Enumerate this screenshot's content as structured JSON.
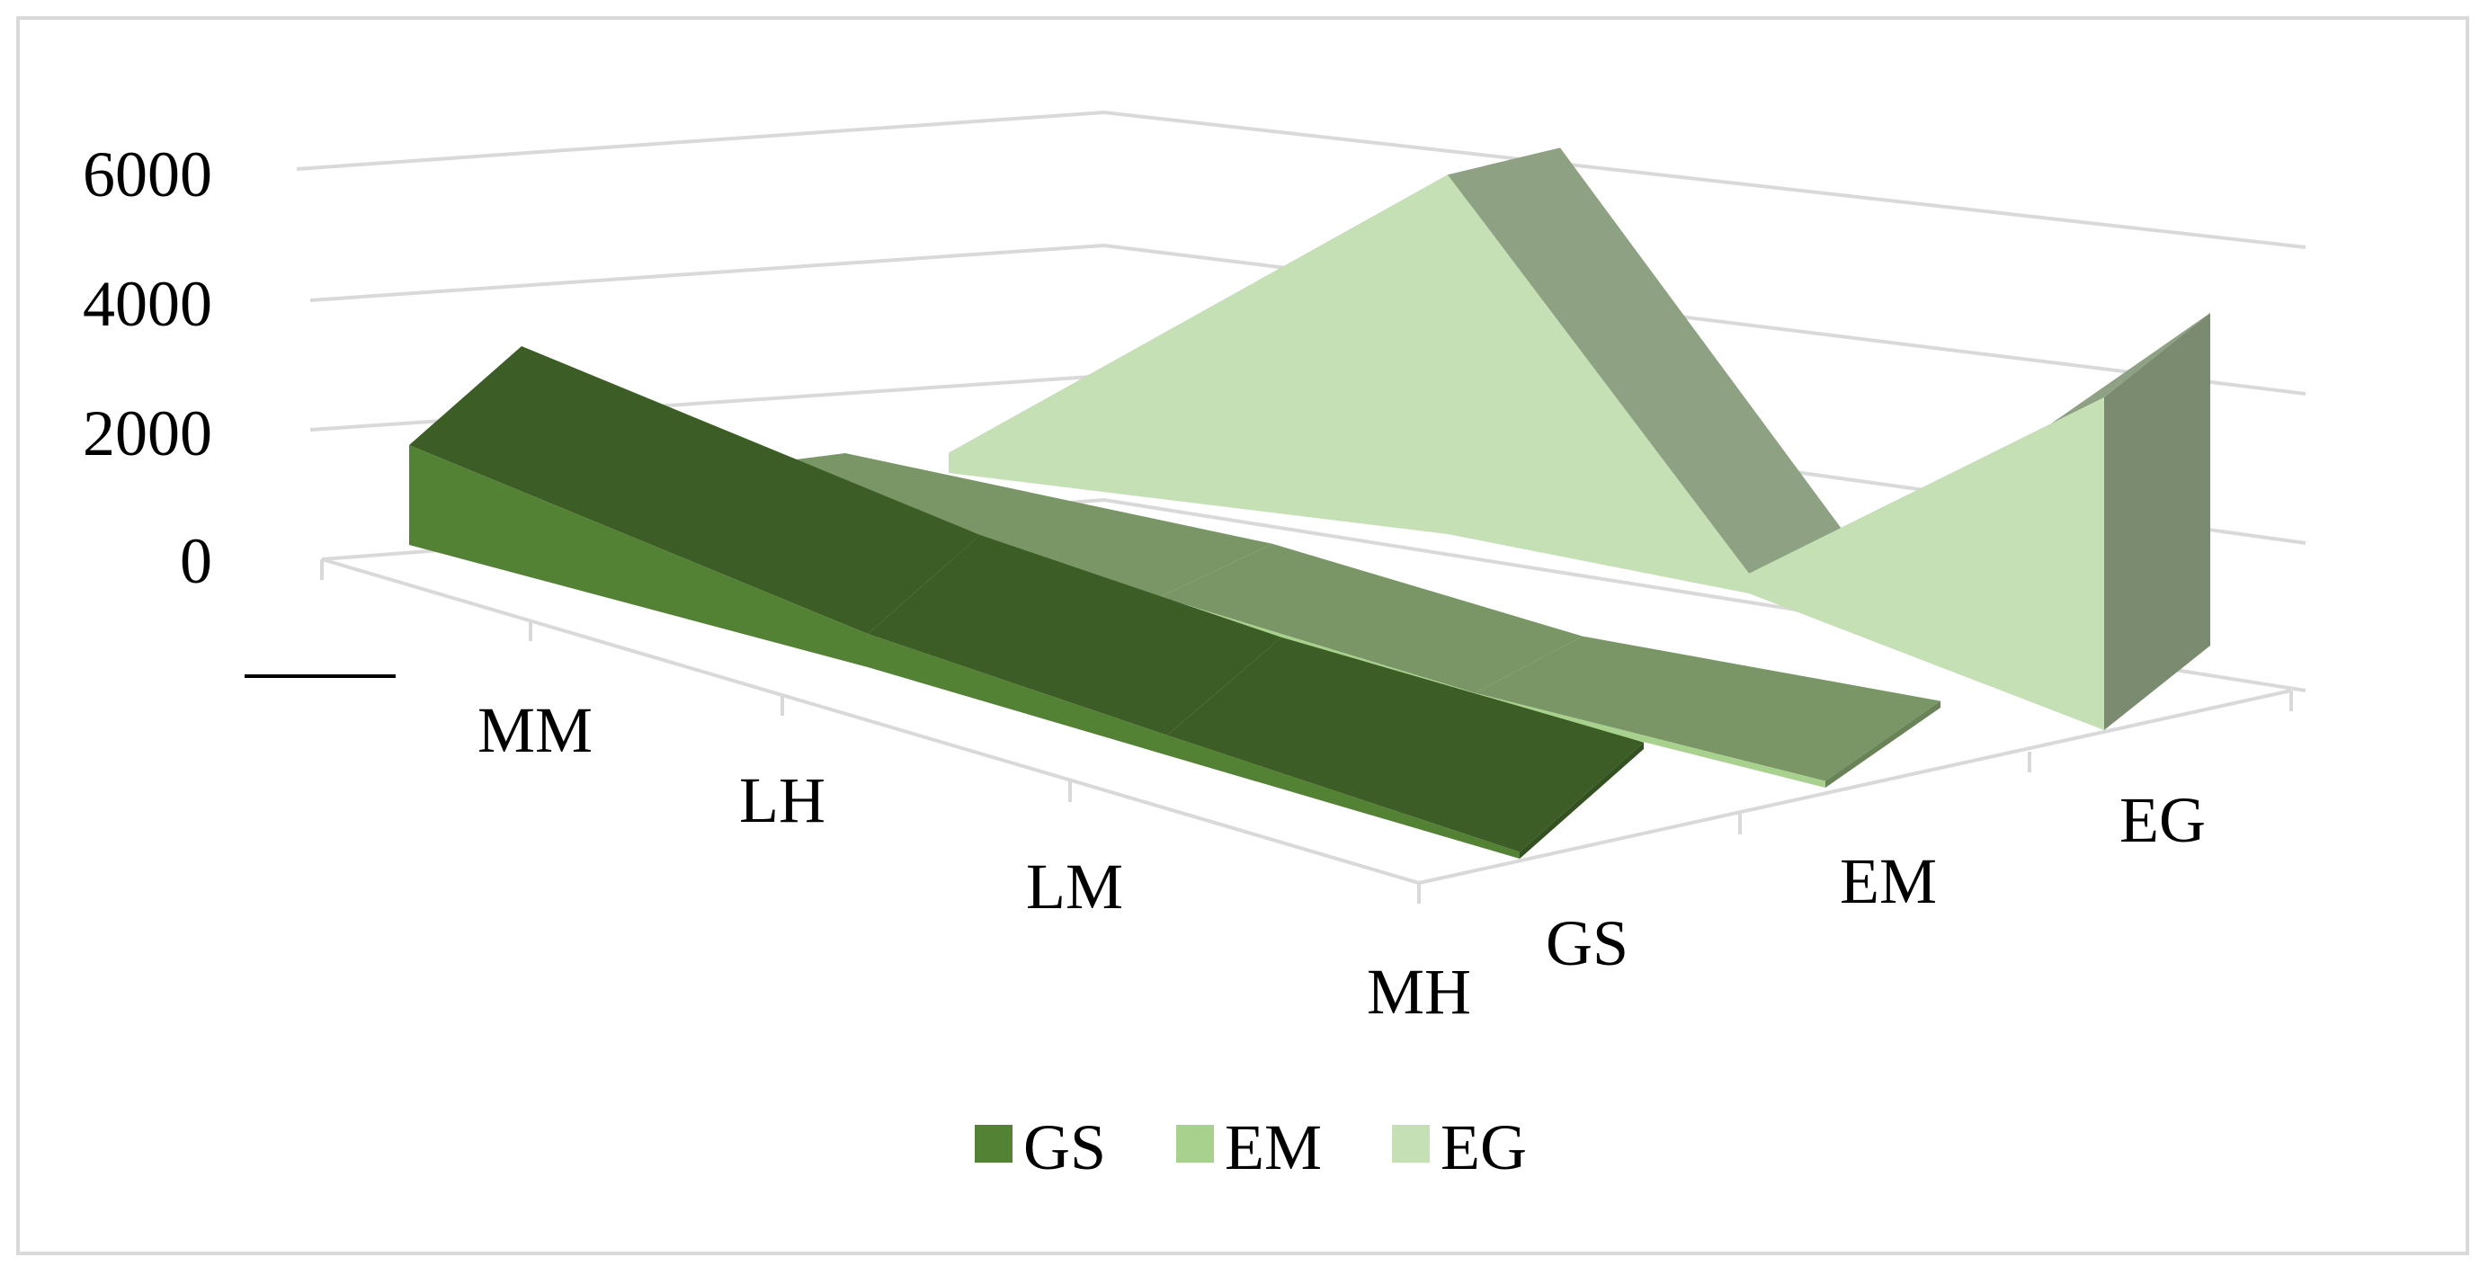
{
  "chart_data": {
    "type": "area",
    "title": "",
    "categories": [
      "MM",
      "LH",
      "LM",
      "MH"
    ],
    "series": [
      {
        "name": "GS",
        "values": [
          1500,
          500,
          300,
          100
        ],
        "color": "#548235"
      },
      {
        "name": "EM",
        "values": [
          500,
          300,
          100,
          100
        ],
        "color": "#a9d18e"
      },
      {
        "name": "EG",
        "values": [
          300,
          5400,
          300,
          5000
        ],
        "color": "#c5e0b4"
      }
    ],
    "y_ticks": [
      "6000",
      "4000",
      "2000",
      "0"
    ],
    "ylim": [
      0,
      7000
    ],
    "grid": true,
    "legend_position": "bottom"
  }
}
